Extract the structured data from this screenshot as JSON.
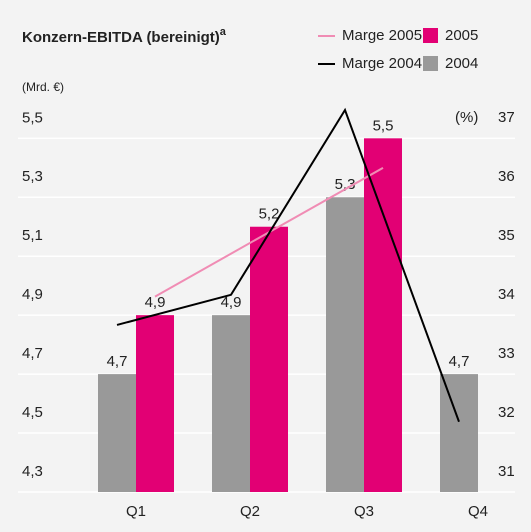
{
  "chart_data": {
    "type": "bar_line",
    "title": "Konzern-EBITDA (bereinigt)",
    "title_superscript": "a",
    "y_label": "(Mrd. €)",
    "y2_label": "(%)",
    "categories": [
      "Q1",
      "Q2",
      "Q3",
      "Q4"
    ],
    "series": [
      {
        "name": "2005",
        "type": "bar",
        "color": "#e20074",
        "values": [
          4.9,
          5.2,
          5.5,
          null
        ],
        "value_labels": [
          "4,9",
          "5,2",
          "5,5",
          null
        ]
      },
      {
        "name": "2004",
        "type": "bar",
        "color": "#999999",
        "values": [
          4.7,
          4.9,
          5.3,
          4.7
        ],
        "value_labels": [
          "4,7",
          "4,9",
          "5,3",
          "4,7"
        ]
      },
      {
        "name": "Marge 2005",
        "type": "line",
        "axis": "y2",
        "color": "#f08cb4",
        "values": [
          34.31,
          35.4,
          36.49,
          null
        ]
      },
      {
        "name": "Marge 2004",
        "type": "line",
        "axis": "y2",
        "color": "#000000",
        "values": [
          33.83,
          34.34,
          37.47,
          32.19
        ]
      }
    ],
    "ylim": [
      4.3,
      5.63
    ],
    "yticks": [
      {
        "value": 4.3,
        "label": "4,3"
      },
      {
        "value": 4.5,
        "label": "4,5"
      },
      {
        "value": 4.7,
        "label": "4,7"
      },
      {
        "value": 4.9,
        "label": "4,9"
      },
      {
        "value": 5.1,
        "label": "5,1"
      },
      {
        "value": 5.3,
        "label": "5,3"
      },
      {
        "value": 5.5,
        "label": "5,5"
      }
    ],
    "y2lim": [
      31,
      37.64
    ],
    "y2ticks": [
      31,
      32,
      33,
      34,
      35,
      36,
      37
    ],
    "grid": true
  }
}
